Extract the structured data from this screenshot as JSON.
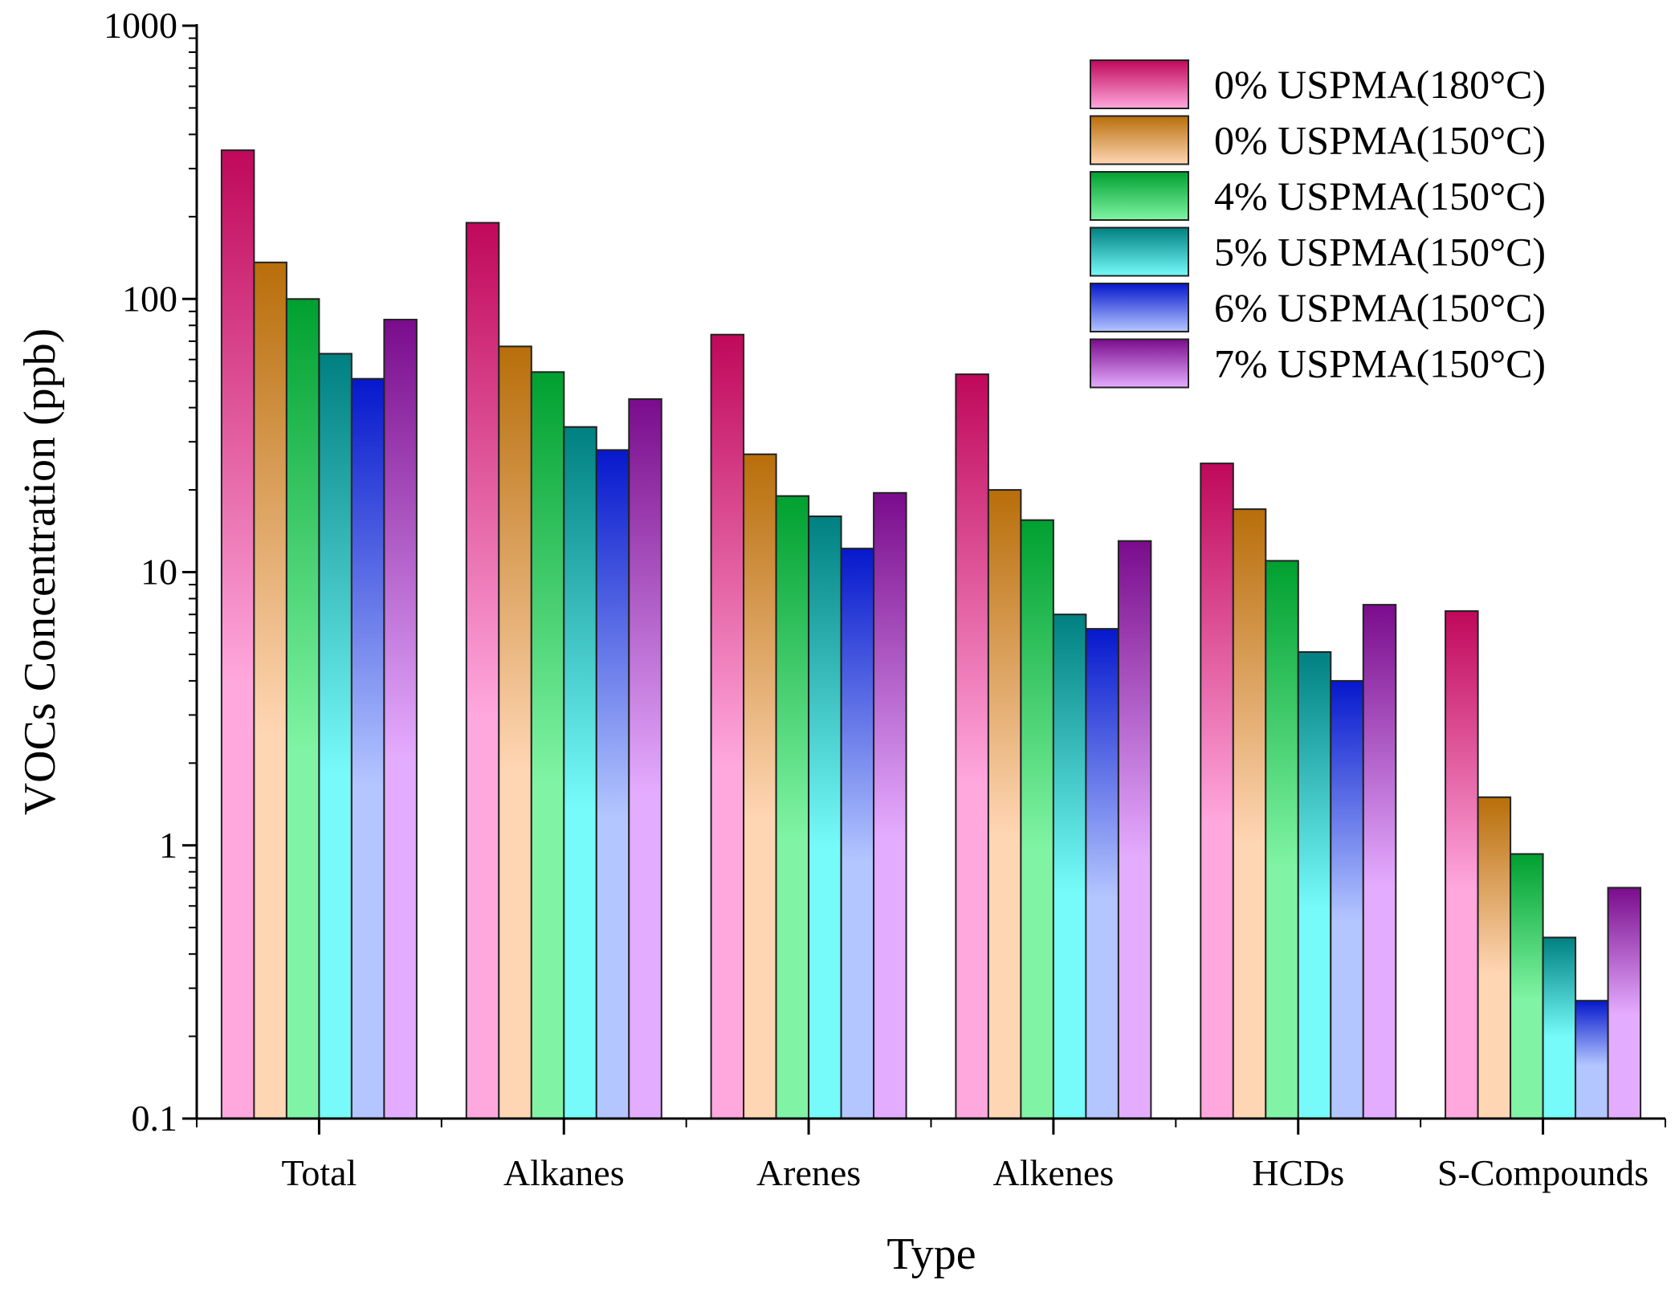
{
  "chart_data": {
    "type": "bar",
    "title": "",
    "xlabel": "Type",
    "ylabel": "VOCs Concentration (ppb)",
    "yscale": "log",
    "ylim": [
      0.1,
      1000
    ],
    "yticks": [
      {
        "value": 0.1,
        "label": "0.1"
      },
      {
        "value": 1,
        "label": "1"
      },
      {
        "value": 10,
        "label": "10"
      },
      {
        "value": 100,
        "label": "100"
      },
      {
        "value": 1000,
        "label": "1000"
      }
    ],
    "categories": [
      "Total",
      "Alkanes",
      "Arenes",
      "Alkenes",
      "HCDs",
      "S-Compounds"
    ],
    "legend_position": "top-right",
    "series": [
      {
        "name": "0% USPMA(180°C)",
        "dark": "#c0085a",
        "light": "#ffa8de",
        "values": [
          350,
          190,
          74,
          53,
          25,
          7.2
        ]
      },
      {
        "name": "0% USPMA(150°C)",
        "dark": "#b86e0a",
        "light": "#ffd6b4",
        "values": [
          136,
          67,
          27,
          20,
          17,
          1.5
        ]
      },
      {
        "name": "4% USPMA(150°C)",
        "dark": "#00a030",
        "light": "#80f4a4",
        "values": [
          100,
          54,
          19,
          15.5,
          11,
          0.93
        ]
      },
      {
        "name": "5% USPMA(150°C)",
        "dark": "#008080",
        "light": "#76fafa",
        "values": [
          63,
          34,
          16,
          7,
          5.1,
          0.46
        ]
      },
      {
        "name": "6% USPMA(150°C)",
        "dark": "#0618cc",
        "light": "#b4c6ff",
        "values": [
          51,
          28,
          12.2,
          6.2,
          4.0,
          0.27
        ]
      },
      {
        "name": "7% USPMA(150°C)",
        "dark": "#7a0c8c",
        "light": "#e4acff",
        "values": [
          84,
          43,
          19.5,
          13,
          7.6,
          0.7
        ]
      }
    ]
  }
}
